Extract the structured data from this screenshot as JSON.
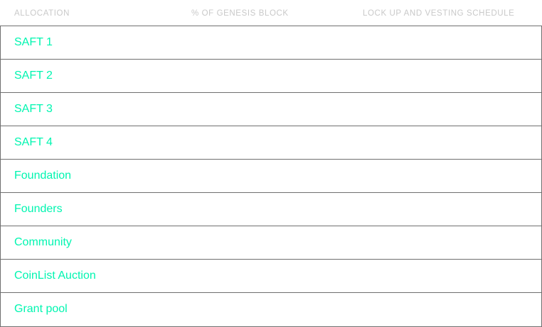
{
  "table": {
    "headers": [
      "ALLOCATION",
      "% OF GENESIS BLOCK",
      "LOCK UP AND VESTING SCHEDULE"
    ],
    "rows": [
      {
        "allocation": "SAFT 1",
        "percent": "",
        "schedule": ""
      },
      {
        "allocation": "SAFT 2",
        "percent": "",
        "schedule": ""
      },
      {
        "allocation": "SAFT 3",
        "percent": "",
        "schedule": ""
      },
      {
        "allocation": "SAFT 4",
        "percent": "",
        "schedule": ""
      },
      {
        "allocation": "Foundation",
        "percent": "",
        "schedule": ""
      },
      {
        "allocation": "Founders",
        "percent": "",
        "schedule": ""
      },
      {
        "allocation": "Community",
        "percent": "",
        "schedule": ""
      },
      {
        "allocation": "CoinList Auction",
        "percent": "",
        "schedule": ""
      },
      {
        "allocation": "Grant pool",
        "percent": "",
        "schedule": ""
      }
    ]
  },
  "colors": {
    "accent": "#00f5b0",
    "header_text": "#c9c9c9",
    "border": "#6f6f6f",
    "background": "#ffffff"
  }
}
